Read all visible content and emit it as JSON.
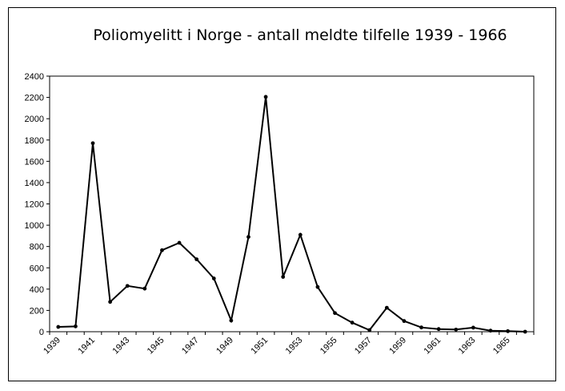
{
  "chart_data": {
    "type": "line",
    "title": "Poliomyelitt i Norge - antall meldte tilfelle 1939 - 1966",
    "xlabel": "",
    "ylabel": "",
    "ylim": [
      0,
      2400
    ],
    "yticks": [
      "0",
      "200",
      "400",
      "600",
      "800",
      "1000",
      "1200",
      "1400",
      "1600",
      "1800",
      "2000",
      "2200",
      "2400"
    ],
    "xticks": [
      "1939",
      "1941",
      "1943",
      "1945",
      "1947",
      "1949",
      "1951",
      "1953",
      "1955",
      "1957",
      "1959",
      "1961",
      "1963",
      "1965"
    ],
    "grid": false,
    "series": [
      {
        "color": "#000000",
        "x": [
          1939,
          1940,
          1941,
          1942,
          1943,
          1944,
          1945,
          1946,
          1947,
          1948,
          1949,
          1950,
          1951,
          1952,
          1953,
          1954,
          1955,
          1956,
          1957,
          1958,
          1959,
          1960,
          1961,
          1962,
          1963,
          1964,
          1965,
          1966
        ],
        "values": [
          45,
          50,
          1770,
          280,
          430,
          405,
          765,
          835,
          680,
          500,
          105,
          890,
          2205,
          515,
          910,
          420,
          175,
          85,
          15,
          225,
          100,
          40,
          25,
          20,
          38,
          10,
          5,
          0
        ]
      }
    ]
  }
}
